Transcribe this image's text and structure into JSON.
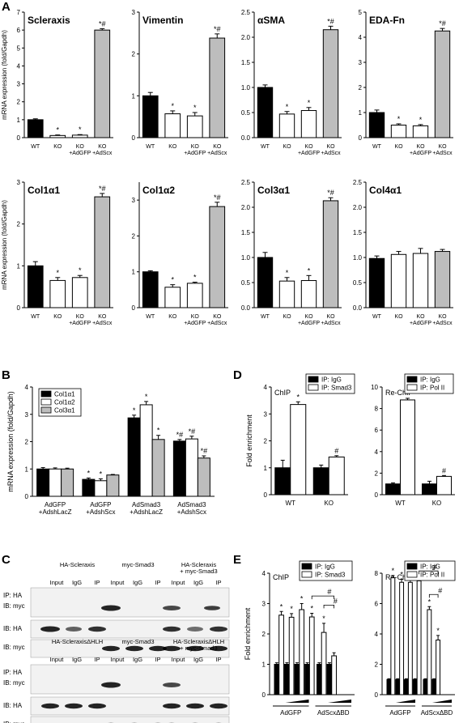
{
  "panels": {
    "A": "A",
    "B": "B",
    "C": "C",
    "D": "D",
    "E": "E"
  },
  "chart_data": [
    {
      "id": "A1",
      "type": "bar",
      "title": "Scleraxis",
      "ylabel": "mRNA expression (fold/Gapdh)",
      "ylim": [
        0,
        7
      ],
      "yticks": [
        "0",
        "1",
        "2",
        "3",
        "4",
        "5",
        "6",
        "7"
      ],
      "categories": [
        "WT",
        "KO",
        "KO\n+AdGFP",
        "KO\n+AdScx"
      ],
      "values": [
        1.0,
        0.12,
        0.14,
        6.0
      ],
      "errors": [
        0.05,
        0.03,
        0.03,
        0.08
      ],
      "fills": [
        "#000",
        "#fff",
        "#fff",
        "#bdbdbd"
      ],
      "annotations": [
        "",
        "*",
        "*",
        "*#"
      ]
    },
    {
      "id": "A2",
      "type": "bar",
      "title": "Vimentin",
      "ylabel": "",
      "ylim": [
        0,
        3
      ],
      "yticks": [
        "0",
        "1",
        "2",
        "3"
      ],
      "categories": [
        "WT",
        "KO",
        "KO\n+AdGFP",
        "KO\n+AdScx"
      ],
      "values": [
        1.0,
        0.57,
        0.52,
        2.38
      ],
      "errors": [
        0.08,
        0.07,
        0.08,
        0.1
      ],
      "fills": [
        "#000",
        "#fff",
        "#fff",
        "#bdbdbd"
      ],
      "annotations": [
        "",
        "*",
        "*",
        "*#"
      ]
    },
    {
      "id": "A3",
      "type": "bar",
      "title": "αSMA",
      "ylabel": "",
      "ylim": [
        0,
        2.5
      ],
      "yticks": [
        "0.0",
        "0.5",
        "1.0",
        "1.5",
        "2.0",
        "2.5"
      ],
      "categories": [
        "WT",
        "KO",
        "KO\n+AdGFP",
        "KO\n+AdScx"
      ],
      "values": [
        1.0,
        0.47,
        0.54,
        2.15
      ],
      "errors": [
        0.05,
        0.05,
        0.06,
        0.07
      ],
      "fills": [
        "#000",
        "#fff",
        "#fff",
        "#bdbdbd"
      ],
      "annotations": [
        "",
        "*",
        "*",
        "*#"
      ]
    },
    {
      "id": "A4",
      "type": "bar",
      "title": "EDA-Fn",
      "ylabel": "",
      "ylim": [
        0,
        5
      ],
      "yticks": [
        "0",
        "1",
        "2",
        "3",
        "4",
        "5"
      ],
      "categories": [
        "WT",
        "KO",
        "KO\n+AdGFP",
        "KO\n+AdScx"
      ],
      "values": [
        1.0,
        0.5,
        0.47,
        4.25
      ],
      "errors": [
        0.1,
        0.05,
        0.05,
        0.1
      ],
      "fills": [
        "#000",
        "#fff",
        "#fff",
        "#bdbdbd"
      ],
      "annotations": [
        "",
        "*",
        "*",
        "*#"
      ]
    },
    {
      "id": "A5",
      "type": "bar",
      "title": "Col1α1",
      "ylabel": "mRNA expression (fold/Gapdh)",
      "ylim": [
        0,
        3
      ],
      "yticks": [
        "0",
        "1",
        "2",
        "3"
      ],
      "categories": [
        "WT",
        "KO",
        "KO\n+AdGFP",
        "KO\n+AdScx"
      ],
      "values": [
        1.0,
        0.65,
        0.72,
        2.65
      ],
      "errors": [
        0.1,
        0.07,
        0.05,
        0.08
      ],
      "fills": [
        "#000",
        "#fff",
        "#fff",
        "#bdbdbd"
      ],
      "annotations": [
        "",
        "*",
        "*",
        "*#"
      ]
    },
    {
      "id": "A6",
      "type": "bar",
      "title": "Col1α2",
      "ylabel": "",
      "ylim": [
        0,
        3.5
      ],
      "yticks": [
        "0",
        "1",
        "2",
        "3"
      ],
      "categories": [
        "WT",
        "KO",
        "KO\n+AdGFP",
        "KO\n+AdScx"
      ],
      "values": [
        1.0,
        0.57,
        0.68,
        2.82
      ],
      "errors": [
        0.03,
        0.07,
        0.03,
        0.12
      ],
      "fills": [
        "#000",
        "#fff",
        "#fff",
        "#bdbdbd"
      ],
      "annotations": [
        "",
        "*",
        "*",
        "*#"
      ]
    },
    {
      "id": "A7",
      "type": "bar",
      "title": "Col3α1",
      "ylabel": "",
      "ylim": [
        0,
        2.5
      ],
      "yticks": [
        "0.0",
        "0.5",
        "1.0",
        "1.5",
        "2.0",
        "2.5"
      ],
      "categories": [
        "WT",
        "KO",
        "KO\n+AdGFP",
        "KO\n+AdScx"
      ],
      "values": [
        1.0,
        0.53,
        0.54,
        2.13
      ],
      "errors": [
        0.1,
        0.07,
        0.1,
        0.06
      ],
      "fills": [
        "#000",
        "#fff",
        "#fff",
        "#bdbdbd"
      ],
      "annotations": [
        "",
        "*",
        "*",
        "*#"
      ]
    },
    {
      "id": "A8",
      "type": "bar",
      "title": "Col4α1",
      "ylabel": "",
      "ylim": [
        0,
        2.5
      ],
      "yticks": [
        "0.0",
        "0.5",
        "1.0",
        "1.5",
        "2.0",
        "2.5"
      ],
      "categories": [
        "WT",
        "KO",
        "KO\n+AdGFP",
        "KO\n+AdScx"
      ],
      "values": [
        0.98,
        1.06,
        1.08,
        1.12
      ],
      "errors": [
        0.05,
        0.06,
        0.1,
        0.04
      ],
      "fills": [
        "#000",
        "#fff",
        "#fff",
        "#bdbdbd"
      ],
      "annotations": [
        "",
        "",
        "",
        ""
      ]
    },
    {
      "id": "B",
      "type": "bar",
      "title": "",
      "ylabel": "mRNA expression (fold/Gapdh)",
      "ylim": [
        0,
        4
      ],
      "yticks": [
        "0",
        "1",
        "2",
        "3",
        "4"
      ],
      "categories": [
        "AdGFP\n+AdshLacZ",
        "AdGFP\n+AdshScx",
        "AdSmad3\n+AdshLacZ",
        "AdSmad3\n+AdshScx"
      ],
      "series": [
        {
          "name": "Col1α1",
          "fill": "#000",
          "values": [
            1.0,
            0.62,
            2.87,
            2.02
          ],
          "errors": [
            0.05,
            0.05,
            0.1,
            0.06
          ],
          "annotations": [
            "",
            "*",
            "*",
            "*#"
          ]
        },
        {
          "name": "Col1α2",
          "fill": "#fff",
          "values": [
            1.0,
            0.57,
            3.35,
            2.1
          ],
          "errors": [
            0.04,
            0.07,
            0.12,
            0.1
          ],
          "annotations": [
            "",
            "*",
            "*",
            "*#"
          ]
        },
        {
          "name": "Col3α1",
          "fill": "#bdbdbd",
          "values": [
            1.0,
            0.78,
            2.08,
            1.4
          ],
          "errors": [
            0.03,
            0.02,
            0.15,
            0.08
          ],
          "annotations": [
            "",
            "",
            "*",
            "*#"
          ]
        }
      ],
      "legend": "top-left"
    },
    {
      "id": "D1",
      "type": "bar",
      "title": "ChIP",
      "ylabel": "Fold enrichment",
      "ylim": [
        0,
        4
      ],
      "yticks": [
        "0",
        "1",
        "2",
        "3",
        "4"
      ],
      "categories": [
        "WT",
        "KO"
      ],
      "series": [
        {
          "name": "IP: IgG",
          "fill": "#000",
          "values": [
            1.0,
            1.0
          ],
          "errors": [
            0.28,
            0.1
          ],
          "annotations": [
            "",
            ""
          ]
        },
        {
          "name": "IP: Smad3",
          "fill": "#fff",
          "values": [
            3.35,
            1.4
          ],
          "errors": [
            0.1,
            0.05
          ],
          "annotations": [
            "*",
            "#"
          ]
        }
      ],
      "legend": "top-right"
    },
    {
      "id": "D2",
      "type": "bar",
      "title": "Re-ChIP",
      "ylabel": "",
      "ylim": [
        0,
        10
      ],
      "yticks": [
        "0",
        "2",
        "4",
        "6",
        "8",
        "10"
      ],
      "categories": [
        "WT",
        "KO"
      ],
      "series": [
        {
          "name": "IP: IgG",
          "fill": "#000",
          "values": [
            1.0,
            1.0
          ],
          "errors": [
            0.1,
            0.25
          ],
          "annotations": [
            "",
            ""
          ]
        },
        {
          "name": "IP: Pol II",
          "fill": "#fff",
          "values": [
            8.8,
            1.7
          ],
          "errors": [
            0.15,
            0.08
          ],
          "annotations": [
            "*",
            "#"
          ]
        }
      ],
      "legend": "top-right"
    },
    {
      "id": "E1",
      "type": "bar",
      "title": "ChIP",
      "ylabel": "Fold enrichment",
      "ylim": [
        0,
        4
      ],
      "yticks": [
        "0",
        "1",
        "2",
        "3",
        "4"
      ],
      "categories": [
        "1",
        "2",
        "3",
        "4",
        "5",
        "6",
        "7",
        "8"
      ],
      "groups": [
        "AdGFP",
        "AdScxΔBD"
      ],
      "series": [
        {
          "name": "IP: IgG",
          "fill": "#000",
          "values": [
            1,
            1,
            1,
            1,
            1,
            1,
            1,
            1
          ],
          "errors": [
            0.05,
            0.05,
            0.05,
            0.05,
            0.05,
            0.05,
            0.05,
            0.05
          ],
          "annotations": [
            "",
            "",
            "",
            "",
            "",
            "",
            "",
            ""
          ]
        },
        {
          "name": "IP: Smad3",
          "fill": "#fff",
          "values": [
            2.62,
            2.55,
            2.8,
            2.56,
            2.05,
            1.28,
            0,
            0
          ],
          "errors": [
            0.12,
            0.12,
            0.2,
            0.12,
            0.3,
            0.1,
            0,
            0
          ],
          "annotations": [
            "*",
            "*",
            "*",
            "*",
            "*",
            "",
            "",
            ""
          ]
        }
      ],
      "legend": "top-right"
    },
    {
      "id": "E2",
      "type": "bar",
      "title": "Re-ChIP",
      "ylabel": "",
      "ylim": [
        0,
        8
      ],
      "yticks": [
        "0",
        "2",
        "4",
        "6",
        "8"
      ],
      "categories": [
        "1",
        "2",
        "3",
        "4",
        "5",
        "6",
        "7",
        "8"
      ],
      "groups": [
        "AdGFP",
        "AdScxΔBD"
      ],
      "series": [
        {
          "name": "IP: IgG",
          "fill": "#000",
          "values": [
            1,
            1,
            1,
            1,
            1,
            1,
            1,
            1
          ],
          "errors": [
            0.05,
            0.05,
            0.05,
            0.05,
            0.05,
            0.05,
            0.05,
            0.05
          ],
          "annotations": [
            "",
            "",
            "",
            "",
            "",
            "",
            "",
            ""
          ]
        },
        {
          "name": "IP: Pol II",
          "fill": "#fff",
          "values": [
            7.7,
            7.4,
            7.4,
            7.5,
            5.6,
            3.6,
            0,
            0
          ],
          "errors": [
            0.15,
            0.2,
            0.2,
            0.25,
            0.2,
            0.3,
            0,
            0
          ],
          "annotations": [
            "*",
            "*",
            "*",
            "*",
            "*",
            "*",
            "",
            ""
          ]
        }
      ],
      "legend": "top-right"
    }
  ],
  "blots": {
    "top": {
      "headers": [
        "HA-Scleraxis",
        "myc-Smad3",
        "HA-Scleraxis\n+ myc-Smad3"
      ],
      "lanes": [
        "Input",
        "IgG",
        "IP"
      ],
      "rows": [
        "IP: HA",
        "IB: myc",
        "IB: HA",
        "IB: myc"
      ]
    },
    "bottom": {
      "headers": [
        "HA-ScleraxisΔHLH",
        "myc-Smad3",
        "HA-ScleraxisΔHLH\n+ myc-Smad3"
      ],
      "lanes": [
        "Input",
        "IgG",
        "IP"
      ],
      "rows": [
        "IP: HA",
        "IB: myc",
        "IB: HA",
        "IB: myc"
      ]
    }
  }
}
